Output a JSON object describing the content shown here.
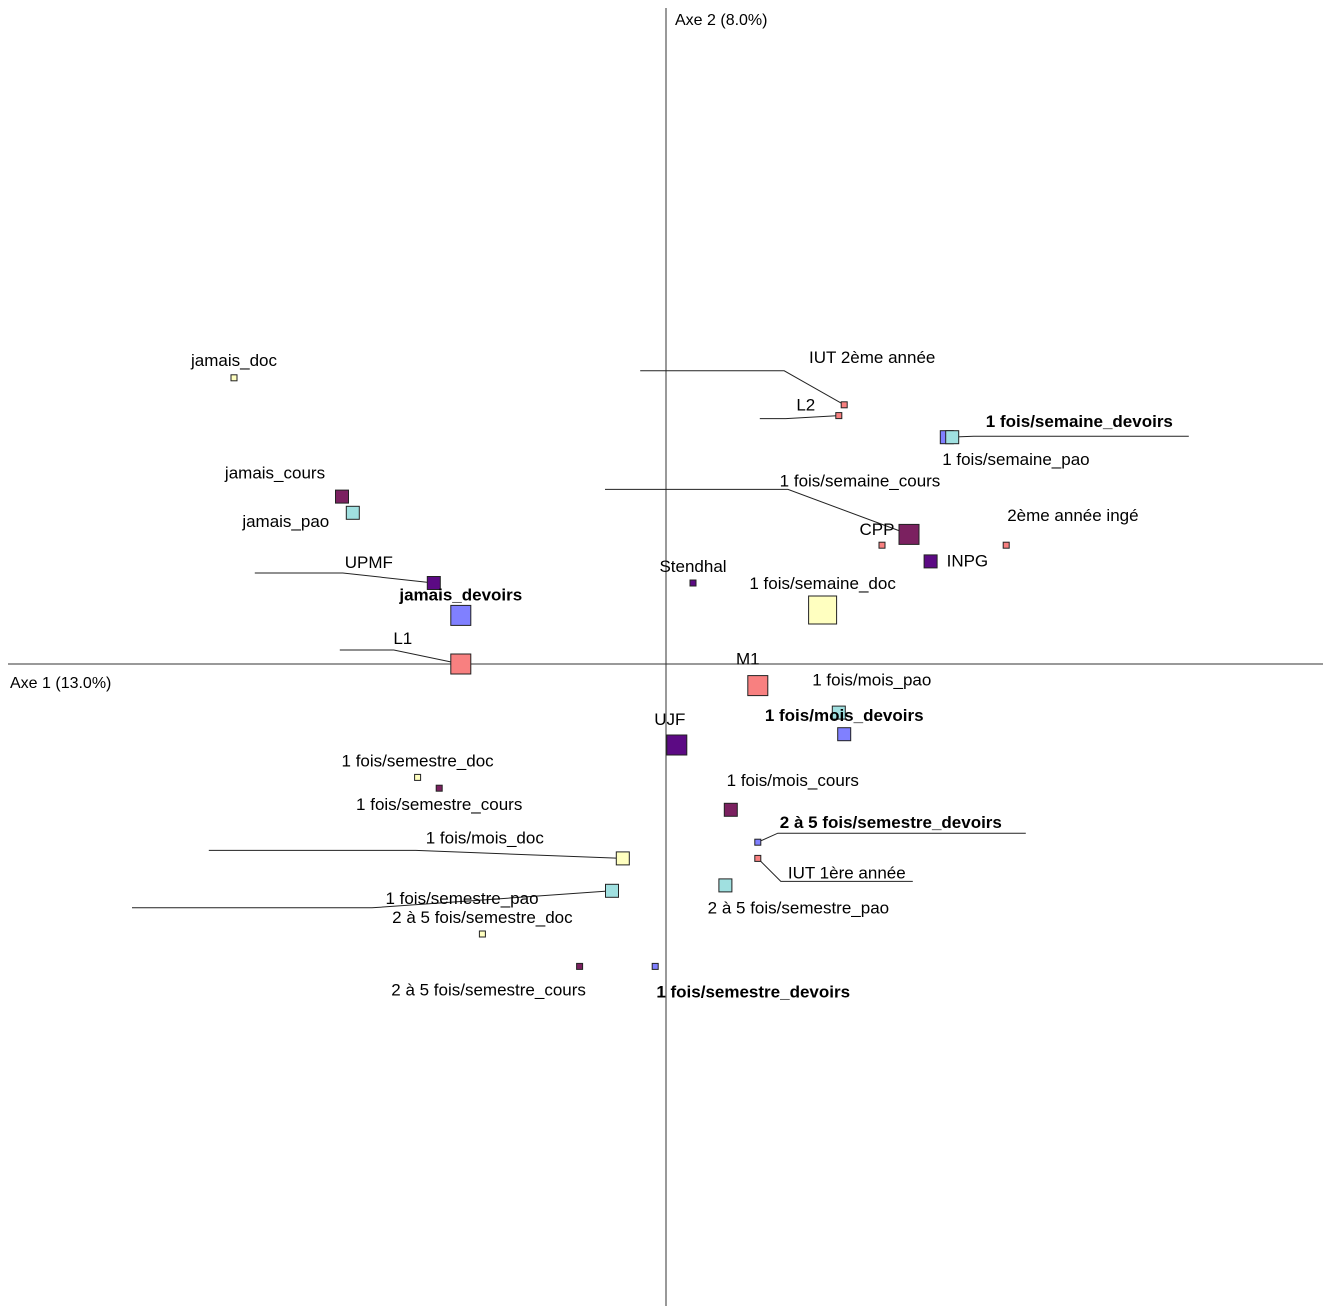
{
  "chart_data": {
    "type": "scatter",
    "title": "",
    "xlabel": "Axe 1 (13.0%)",
    "ylabel": "Axe 2 (8.0%)",
    "xlim": [
      -1.2,
      1.2
    ],
    "ylim": [
      -1.1,
      1.1
    ],
    "grid": false,
    "legend": "none",
    "groups": {
      "doc": {
        "color": "#ffffc0"
      },
      "cours": {
        "color": "#7b2160"
      },
      "pao": {
        "color": "#a0e0e0"
      },
      "devoirs": {
        "color": "#8080ff"
      },
      "annee": {
        "color": "#f88080"
      },
      "univ": {
        "color": "#5c0a84"
      }
    },
    "points": [
      {
        "label": "jamais_doc",
        "x": -0.8,
        "y": 0.53,
        "group": "doc",
        "size": "small",
        "bold": false
      },
      {
        "label": "jamais_cours",
        "x": -0.6,
        "y": 0.31,
        "group": "cours",
        "size": "medium",
        "bold": false
      },
      {
        "label": "jamais_pao",
        "x": -0.58,
        "y": 0.28,
        "group": "pao",
        "size": "medium",
        "bold": false
      },
      {
        "label": "UPMF",
        "x": -0.43,
        "y": 0.15,
        "group": "univ",
        "size": "medium",
        "bold": false
      },
      {
        "label": "jamais_devoirs",
        "x": -0.38,
        "y": 0.09,
        "group": "devoirs",
        "size": "large",
        "bold": true
      },
      {
        "label": "L1",
        "x": -0.38,
        "y": 0.0,
        "group": "annee",
        "size": "large",
        "bold": false
      },
      {
        "label": "Stendhal",
        "x": 0.05,
        "y": 0.15,
        "group": "univ",
        "size": "small",
        "bold": false
      },
      {
        "label": "1 fois/semaine_doc",
        "x": 0.29,
        "y": 0.1,
        "group": "doc",
        "size": "xlarge",
        "bold": false
      },
      {
        "label": "IUT 2ème année",
        "x": 0.33,
        "y": 0.48,
        "group": "annee",
        "size": "small",
        "bold": false
      },
      {
        "label": "L2",
        "x": 0.32,
        "y": 0.46,
        "group": "annee",
        "size": "small",
        "bold": false
      },
      {
        "label": "1 fois/semaine_devoirs",
        "x": 0.52,
        "y": 0.42,
        "group": "devoirs",
        "size": "medium",
        "bold": true
      },
      {
        "label": "1 fois/semaine_pao",
        "x": 0.53,
        "y": 0.42,
        "group": "pao",
        "size": "medium",
        "bold": false
      },
      {
        "label": "1 fois/semaine_cours",
        "x": 0.45,
        "y": 0.24,
        "group": "cours",
        "size": "large",
        "bold": false
      },
      {
        "label": "CPP",
        "x": 0.4,
        "y": 0.22,
        "group": "annee",
        "size": "small",
        "bold": false
      },
      {
        "label": "2ème année ingé",
        "x": 0.63,
        "y": 0.22,
        "group": "annee",
        "size": "small",
        "bold": false
      },
      {
        "label": "INPG",
        "x": 0.49,
        "y": 0.19,
        "group": "univ",
        "size": "medium",
        "bold": false
      },
      {
        "label": "M1",
        "x": 0.17,
        "y": -0.04,
        "group": "annee",
        "size": "large",
        "bold": false
      },
      {
        "label": "1 fois/mois_pao",
        "x": 0.32,
        "y": -0.09,
        "group": "pao",
        "size": "medium",
        "bold": false
      },
      {
        "label": "1 fois/mois_devoirs",
        "x": 0.33,
        "y": -0.13,
        "group": "devoirs",
        "size": "medium",
        "bold": true
      },
      {
        "label": "UJF",
        "x": 0.02,
        "y": -0.15,
        "group": "univ",
        "size": "large",
        "bold": false
      },
      {
        "label": "1 fois/semestre_doc",
        "x": -0.46,
        "y": -0.21,
        "group": "doc",
        "size": "small",
        "bold": false
      },
      {
        "label": "1 fois/semestre_cours",
        "x": -0.42,
        "y": -0.23,
        "group": "cours",
        "size": "small",
        "bold": false
      },
      {
        "label": "1 fois/mois_cours",
        "x": 0.12,
        "y": -0.27,
        "group": "cours",
        "size": "medium",
        "bold": false
      },
      {
        "label": "2 à 5 fois/semestre_devoirs",
        "x": 0.17,
        "y": -0.33,
        "group": "devoirs",
        "size": "small",
        "bold": true
      },
      {
        "label": "IUT 1ère année",
        "x": 0.17,
        "y": -0.36,
        "group": "annee",
        "size": "small",
        "bold": false
      },
      {
        "label": "1 fois/mois_doc",
        "x": -0.08,
        "y": -0.36,
        "group": "doc",
        "size": "medium",
        "bold": false
      },
      {
        "label": "1 fois/semestre_pao",
        "x": -0.1,
        "y": -0.42,
        "group": "pao",
        "size": "medium",
        "bold": false
      },
      {
        "label": "2 à 5 fois/semestre_pao",
        "x": 0.11,
        "y": -0.41,
        "group": "pao",
        "size": "medium",
        "bold": false
      },
      {
        "label": "2 à 5 fois/semestre_doc",
        "x": -0.34,
        "y": -0.5,
        "group": "doc",
        "size": "small",
        "bold": false
      },
      {
        "label": "2 à 5 fois/semestre_cours",
        "x": -0.16,
        "y": -0.56,
        "group": "cours",
        "size": "small",
        "bold": false
      },
      {
        "label": "1 fois/semestre_devoirs",
        "x": -0.02,
        "y": -0.56,
        "group": "devoirs",
        "size": "small",
        "bold": true
      }
    ]
  }
}
